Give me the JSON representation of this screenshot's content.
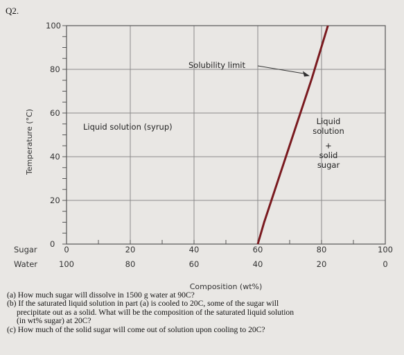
{
  "question_label": "Q2.",
  "chart_data": {
    "type": "line",
    "title": "",
    "xlabel": "Composition (wt%)",
    "ylabel": "Temperature (°C)",
    "x_axis_rows": [
      {
        "label": "Sugar",
        "ticks": [
          "0",
          "20",
          "40",
          "60",
          "80",
          "100"
        ]
      },
      {
        "label": "Water",
        "ticks": [
          "100",
          "80",
          "60",
          "40",
          "20",
          "0"
        ]
      }
    ],
    "xlim": [
      0,
      100
    ],
    "ylim": [
      0,
      100
    ],
    "y_ticks": [
      "0",
      "20",
      "40",
      "60",
      "80",
      "100"
    ],
    "grid": true,
    "series": [
      {
        "name": "Solubility limit",
        "color": "#7a1a1f",
        "x": [
          60,
          62,
          64.5,
          67,
          69.5,
          72,
          74.5,
          77,
          79.5,
          82
        ],
        "y": [
          0,
          10,
          21,
          32,
          43,
          54,
          65,
          76,
          88,
          100
        ]
      }
    ],
    "annotations": {
      "solubility_limit": "Solubility limit",
      "liquid_region": "Liquid solution (syrup)",
      "two_phase_region": [
        "Liquid",
        "solution",
        "+",
        "solid",
        "sugar"
      ]
    }
  },
  "questions": {
    "a": "(a) How much sugar will dissolve in 1500 g water at 90C?",
    "b_line1": "(b) If the saturated liquid solution in part (a) is cooled to 20C, some of the sugar will",
    "b_line2": "precipitate out as a solid. What will be the composition of the saturated liquid solution",
    "b_line3": "(in wt% sugar) at 20C?",
    "c": "(c) How much of the solid sugar will come out of solution upon cooling to 20C?"
  }
}
